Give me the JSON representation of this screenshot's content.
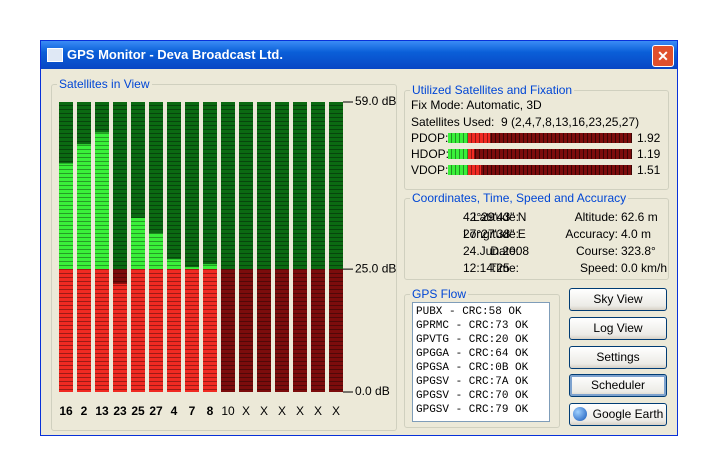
{
  "window": {
    "title": "GPS Monitor - Deva Broadcast Ltd."
  },
  "satellites": {
    "title": "Satellites in View",
    "labels": [
      "16",
      "2",
      "13",
      "23",
      "25",
      "27",
      "4",
      "7",
      "8",
      "10",
      "X",
      "X",
      "X",
      "X",
      "X",
      "X"
    ],
    "values": [
      46.5,
      50.4,
      52.8,
      22,
      35.4,
      32.3,
      27,
      25.4,
      26,
      0,
      null,
      null,
      null,
      null,
      null,
      null
    ],
    "ylim": [
      0,
      59
    ],
    "yticks": [
      {
        "value": 59,
        "label": "59.0 dB"
      },
      {
        "value": 25,
        "label": "25.0 dB"
      },
      {
        "value": 0,
        "label": "0.0 dB"
      }
    ]
  },
  "fixation": {
    "title": "Utilized Satellites and Fixation",
    "fix_mode": "Fix Mode: Automatic, 3D",
    "satellites_used": "Satellites Used:  9 (2,4,7,8,13,16,23,25,27)",
    "dop": [
      {
        "label": "PDOP:",
        "value": 1.92
      },
      {
        "label": "HDOP:",
        "value": 1.19
      },
      {
        "label": "VDOP:",
        "value": 1.51
      }
    ]
  },
  "coordinates": {
    "title": "Coordinates, Time, Speed and Accuracy",
    "rows": [
      [
        "Latitude:",
        "42°29'43\" N",
        "Altitude:",
        "62.6 m"
      ],
      [
        "Longitude:",
        "27°27'38\" E",
        "Accuracy:",
        "4.0 m"
      ],
      [
        "Date:",
        "24.Jun.2008",
        "Course:",
        "323.8°"
      ],
      [
        "Time:",
        "12:14:25",
        "Speed:",
        "0.0 km/h"
      ]
    ]
  },
  "flow": {
    "title": "GPS Flow",
    "lines": [
      "PUBX - CRC:58 OK",
      "GPRMC - CRC:73 OK",
      "GPVTG - CRC:20 OK",
      "GPGGA - CRC:64 OK",
      "GPGSA - CRC:0B OK",
      "GPGSV - CRC:7A OK",
      "GPGSV - CRC:70 OK",
      "GPGSV - CRC:79 OK"
    ]
  },
  "buttons": [
    "Sky View",
    "Log View",
    "Settings",
    "Scheduler",
    "Google Earth"
  ]
}
